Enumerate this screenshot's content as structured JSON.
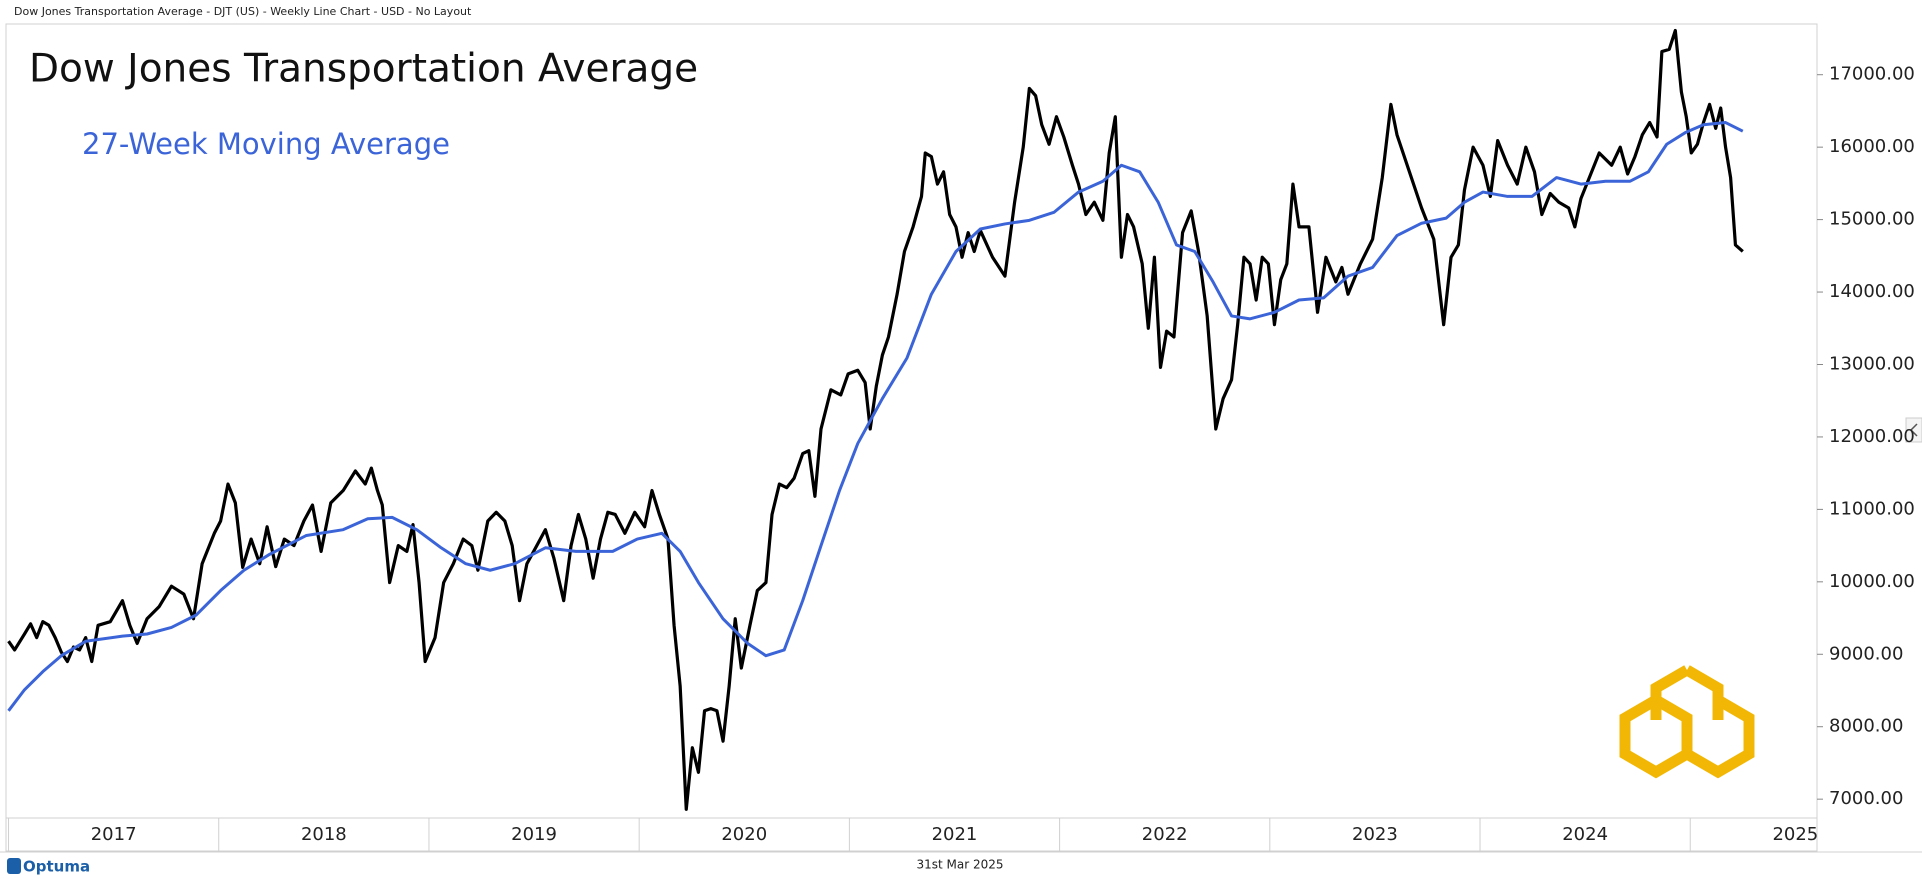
{
  "header_text": "Dow Jones Transportation Average - DJT (US) - Weekly Line Chart - USD - No Layout",
  "brand": "Optuma",
  "date_label": "31st Mar 2025",
  "chart_data": {
    "type": "line",
    "xlim": [
      2016.988,
      2025.603
    ],
    "xticks": [
      2017,
      2018,
      2019,
      2020,
      2021,
      2022,
      2023,
      2024,
      2025
    ],
    "ylim": [
      6740,
      17700
    ],
    "yticks": [
      {
        "value": 7000,
        "label": "7000.00"
      },
      {
        "value": 8000,
        "label": "8000.00"
      },
      {
        "value": 9000,
        "label": "9000.00"
      },
      {
        "value": 10000,
        "label": "10000.00"
      },
      {
        "value": 11000,
        "label": "11000.00"
      },
      {
        "value": 12000,
        "label": "12000.00"
      },
      {
        "value": 13000,
        "label": "13000.00"
      },
      {
        "value": 14000,
        "label": "14000.00"
      },
      {
        "value": 15000,
        "label": "15000.00"
      },
      {
        "value": 16000,
        "label": "16000.00"
      },
      {
        "value": 17000,
        "label": "17000.00"
      }
    ],
    "series": [
      {
        "name": "Dow Jones Transportation Average",
        "color": "#000000",
        "x": [
          2017.0,
          2017.029,
          2017.076,
          2017.105,
          2017.134,
          2017.163,
          2017.192,
          2017.222,
          2017.251,
          2017.28,
          2017.309,
          2017.338,
          2017.367,
          2017.396,
          2017.426,
          2017.484,
          2017.542,
          2017.577,
          2017.612,
          2017.659,
          2017.717,
          2017.775,
          2017.834,
          2017.88,
          2017.921,
          2017.979,
          2018.009,
          2018.044,
          2018.079,
          2018.114,
          2018.154,
          2018.195,
          2018.23,
          2018.271,
          2018.312,
          2018.358,
          2018.405,
          2018.446,
          2018.487,
          2018.533,
          2018.592,
          2018.65,
          2018.697,
          2018.726,
          2018.755,
          2018.778,
          2018.813,
          2018.854,
          2018.895,
          2018.924,
          2018.953,
          2018.982,
          2019.029,
          2019.07,
          2019.116,
          2019.163,
          2019.204,
          2019.233,
          2019.28,
          2019.32,
          2019.361,
          2019.396,
          2019.431,
          2019.466,
          2019.513,
          2019.554,
          2019.594,
          2019.641,
          2019.676,
          2019.711,
          2019.746,
          2019.781,
          2019.816,
          2019.851,
          2019.886,
          2019.932,
          2019.979,
          2020.026,
          2020.061,
          2020.096,
          2020.137,
          2020.166,
          2020.195,
          2020.224,
          2020.253,
          2020.282,
          2020.311,
          2020.341,
          2020.37,
          2020.399,
          2020.428,
          2020.457,
          2020.486,
          2020.527,
          2020.562,
          2020.603,
          2020.632,
          2020.667,
          2020.702,
          2020.737,
          2020.778,
          2020.807,
          2020.836,
          2020.865,
          2020.912,
          2020.959,
          2020.994,
          2021.04,
          2021.075,
          2021.099,
          2021.128,
          2021.157,
          2021.186,
          2021.227,
          2021.262,
          2021.303,
          2021.343,
          2021.361,
          2021.39,
          2021.419,
          2021.448,
          2021.477,
          2021.507,
          2021.536,
          2021.565,
          2021.594,
          2021.623,
          2021.681,
          2021.74,
          2021.786,
          2021.827,
          2021.856,
          2021.886,
          2021.915,
          2021.95,
          2021.985,
          2022.02,
          2022.061,
          2022.09,
          2022.125,
          2022.165,
          2022.206,
          2022.236,
          2022.265,
          2022.294,
          2022.323,
          2022.352,
          2022.393,
          2022.422,
          2022.451,
          2022.48,
          2022.509,
          2022.544,
          2022.585,
          2022.626,
          2022.661,
          2022.702,
          2022.743,
          2022.778,
          2022.818,
          2022.847,
          2022.877,
          2022.906,
          2022.935,
          2022.964,
          2022.993,
          2023.022,
          2023.052,
          2023.081,
          2023.11,
          2023.139,
          2023.186,
          2023.227,
          2023.267,
          2023.314,
          2023.343,
          2023.372,
          2023.431,
          2023.489,
          2023.535,
          2023.576,
          2023.605,
          2023.664,
          2023.722,
          2023.78,
          2023.827,
          2023.862,
          2023.897,
          2023.926,
          2023.967,
          2024.014,
          2024.049,
          2024.084,
          2024.131,
          2024.177,
          2024.218,
          2024.259,
          2024.294,
          2024.334,
          2024.375,
          2024.422,
          2024.451,
          2024.48,
          2024.527,
          2024.567,
          2024.626,
          2024.667,
          2024.702,
          2024.737,
          2024.772,
          2024.807,
          2024.842,
          2024.865,
          2024.9,
          2024.929,
          2024.958,
          2024.981,
          2025.005,
          2025.034,
          2025.063,
          2025.092,
          2025.121,
          2025.145,
          2025.168,
          2025.192,
          2025.215,
          2025.25
        ],
        "values": [
          9180,
          9060,
          9280,
          9420,
          9230,
          9450,
          9400,
          9230,
          9030,
          8900,
          9100,
          9060,
          9230,
          8900,
          9400,
          9450,
          9740,
          9400,
          9150,
          9490,
          9660,
          9940,
          9830,
          9490,
          10250,
          10670,
          10840,
          11350,
          11090,
          10200,
          10590,
          10250,
          10760,
          10210,
          10590,
          10500,
          10840,
          11060,
          10420,
          11090,
          11260,
          11530,
          11350,
          11570,
          11260,
          11060,
          9990,
          10500,
          10420,
          10790,
          9990,
          8900,
          9230,
          9990,
          10250,
          10590,
          10500,
          10160,
          10840,
          10960,
          10840,
          10500,
          9740,
          10250,
          10500,
          10720,
          10330,
          9740,
          10500,
          10930,
          10590,
          10050,
          10590,
          10960,
          10930,
          10670,
          10960,
          10760,
          11260,
          10930,
          10590,
          9400,
          8560,
          6860,
          7710,
          7370,
          8220,
          8250,
          8220,
          7800,
          8560,
          9490,
          8810,
          9400,
          9880,
          9990,
          10930,
          11350,
          11300,
          11430,
          11770,
          11810,
          11180,
          12110,
          12650,
          12580,
          12870,
          12920,
          12750,
          12110,
          12700,
          13130,
          13380,
          13970,
          14560,
          14900,
          15320,
          15920,
          15870,
          15490,
          15660,
          15070,
          14900,
          14480,
          14820,
          14560,
          14850,
          14480,
          14220,
          15240,
          16000,
          16810,
          16710,
          16310,
          16040,
          16420,
          16140,
          15750,
          15490,
          15070,
          15240,
          14990,
          15920,
          16420,
          14480,
          15070,
          14900,
          14390,
          13500,
          14480,
          12960,
          13460,
          13380,
          14820,
          15120,
          14560,
          13670,
          12110,
          12530,
          12790,
          13550,
          14480,
          14390,
          13890,
          14480,
          14390,
          13550,
          14170,
          14390,
          15490,
          14900,
          14900,
          13720,
          14480,
          14140,
          14340,
          13970,
          14390,
          14730,
          15580,
          16590,
          16170,
          15660,
          15160,
          14730,
          13550,
          14480,
          14650,
          15410,
          16000,
          15750,
          15320,
          16090,
          15750,
          15490,
          16000,
          15660,
          15070,
          15360,
          15240,
          15160,
          14900,
          15290,
          15630,
          15920,
          15750,
          16000,
          15630,
          15870,
          16170,
          16340,
          16140,
          17320,
          17350,
          17610,
          16760,
          16420,
          15920,
          16040,
          16340,
          16590,
          16260,
          16540,
          16000,
          15580,
          14650,
          14560
        ]
      },
      {
        "name": "27-Week Moving Average",
        "color": "#3b64d8",
        "x": [
          2017.0,
          2017.076,
          2017.163,
          2017.251,
          2017.367,
          2017.542,
          2017.659,
          2017.775,
          2017.892,
          2018.009,
          2018.12,
          2018.242,
          2018.417,
          2018.592,
          2018.709,
          2018.825,
          2018.942,
          2019.058,
          2019.175,
          2019.291,
          2019.408,
          2019.554,
          2019.699,
          2019.874,
          2019.991,
          2020.108,
          2020.195,
          2020.282,
          2020.399,
          2020.516,
          2020.603,
          2020.69,
          2020.778,
          2020.865,
          2020.953,
          2021.04,
          2021.157,
          2021.274,
          2021.39,
          2021.507,
          2021.623,
          2021.74,
          2021.856,
          2021.973,
          2022.09,
          2022.206,
          2022.294,
          2022.381,
          2022.469,
          2022.556,
          2022.643,
          2022.73,
          2022.818,
          2022.906,
          2023.022,
          2023.139,
          2023.256,
          2023.372,
          2023.489,
          2023.605,
          2023.722,
          2023.839,
          2023.926,
          2024.014,
          2024.131,
          2024.247,
          2024.364,
          2024.48,
          2024.597,
          2024.714,
          2024.801,
          2024.888,
          2024.976,
          2025.063,
          2025.168,
          2025.25
        ],
        "values": [
          8220,
          8510,
          8760,
          8980,
          9180,
          9250,
          9280,
          9370,
          9540,
          9880,
          10160,
          10380,
          10640,
          10720,
          10870,
          10890,
          10720,
          10470,
          10250,
          10160,
          10250,
          10470,
          10420,
          10420,
          10590,
          10670,
          10420,
          9990,
          9490,
          9150,
          8980,
          9060,
          9740,
          10500,
          11260,
          11910,
          12530,
          13090,
          13970,
          14560,
          14870,
          14940,
          14990,
          15100,
          15380,
          15530,
          15750,
          15660,
          15240,
          14650,
          14560,
          14140,
          13670,
          13630,
          13720,
          13890,
          13920,
          14220,
          14340,
          14780,
          14950,
          15020,
          15240,
          15380,
          15320,
          15320,
          15580,
          15490,
          15530,
          15530,
          15660,
          16040,
          16200,
          16310,
          16340,
          16220
        ]
      }
    ]
  }
}
